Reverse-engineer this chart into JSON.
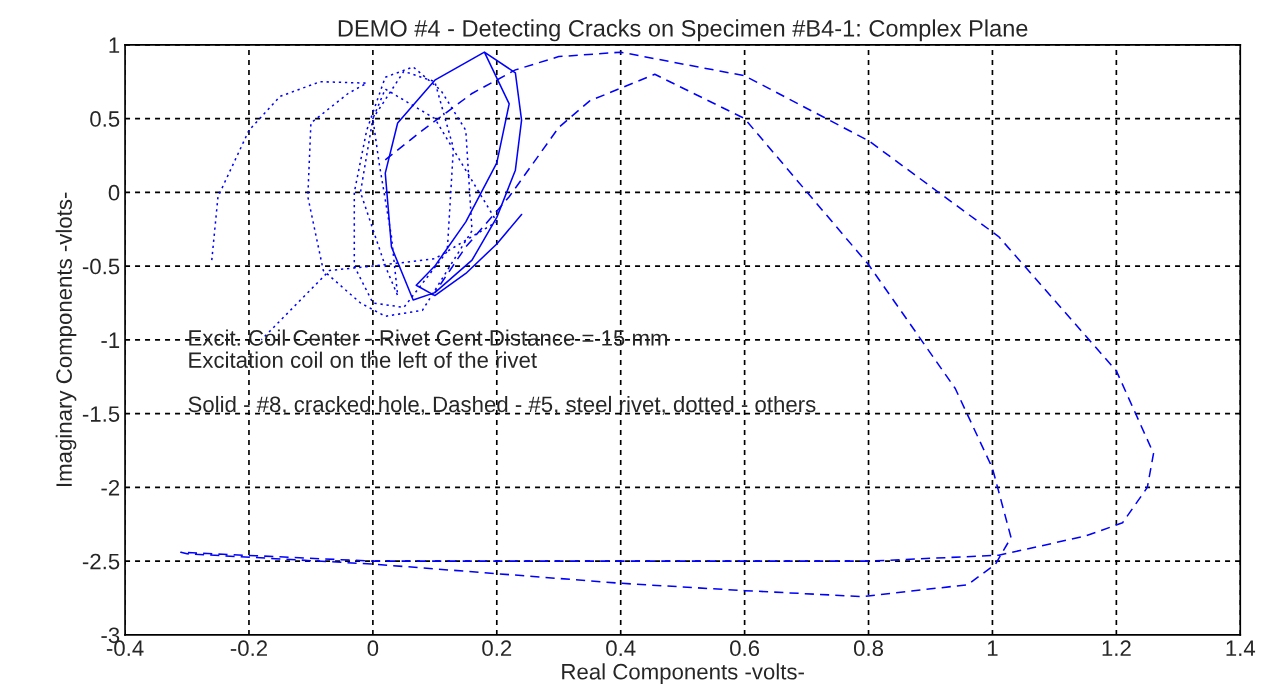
{
  "chart_data": {
    "type": "line",
    "title": "DEMO #4 - Detecting Cracks on Specimen #B4-1: Complex Plane",
    "xlabel": "Real Components -volts-",
    "ylabel": "Imaginary Components -vlots-",
    "xlim": [
      -0.4,
      1.4
    ],
    "ylim": [
      -3,
      1
    ],
    "xticks": [
      -0.4,
      -0.2,
      0,
      0.2,
      0.4,
      0.6,
      0.8,
      1,
      1.2,
      1.4
    ],
    "yticks": [
      -3,
      -2.5,
      -2,
      -1.5,
      -1,
      -0.5,
      0,
      0.5,
      1
    ],
    "grid": true,
    "legend": false,
    "annotations": [
      "Excit. Coil Center - Rivet Cent Distance = 15 mm",
      "Excitation coil on the left of the rivet",
      "Solid - #8, cracked hole, Dashed - #5, steel rivet, dotted - others"
    ],
    "series": [
      {
        "line_style": "solid",
        "color": "#0000ff",
        "x": [
          0.18,
          0.23,
          0.24,
          0.23,
          0.2,
          0.16,
          0.1,
          0.065,
          0.03,
          0.02,
          0.04,
          0.1,
          0.18,
          0.22,
          0.2,
          0.15,
          0.1,
          0.07,
          0.1,
          0.15,
          0.2,
          0.24
        ],
        "values": [
          0.95,
          0.81,
          0.49,
          0.15,
          -0.17,
          -0.46,
          -0.68,
          -0.73,
          -0.37,
          0.13,
          0.47,
          0.76,
          0.95,
          0.6,
          0.2,
          -0.2,
          -0.5,
          -0.63,
          -0.7,
          -0.55,
          -0.35,
          -0.15
        ]
      },
      {
        "line_style": "dashed",
        "color": "#0000ff",
        "x": [
          0.02,
          0.08,
          0.16,
          0.23,
          0.3,
          0.4,
          0.6,
          0.8,
          1.01,
          1.2,
          1.26,
          1.25,
          1.21,
          1.15,
          1.01,
          0.8,
          0.4,
          0.0,
          -0.31,
          -0.3,
          0.0,
          0.4,
          0.6,
          0.79,
          0.96,
          1.005,
          1.03,
          1.0,
          0.94,
          0.8,
          0.6,
          0.455,
          0.35,
          0.3,
          0.22,
          0.15,
          0.1
        ],
        "values": [
          0.22,
          0.42,
          0.67,
          0.83,
          0.92,
          0.95,
          0.79,
          0.35,
          -0.3,
          -1.21,
          -1.77,
          -2.0,
          -2.24,
          -2.33,
          -2.46,
          -2.5,
          -2.5,
          -2.5,
          -2.44,
          -2.45,
          -2.52,
          -2.65,
          -2.7,
          -2.74,
          -2.66,
          -2.52,
          -2.34,
          -1.87,
          -1.33,
          -0.49,
          0.5,
          0.8,
          0.62,
          0.44,
          -0.03,
          -0.37,
          -0.68
        ]
      },
      {
        "line_style": "dotted",
        "color": "#0000ff",
        "x": [
          -0.26,
          -0.25,
          -0.2,
          -0.15,
          -0.085,
          -0.01,
          -0.04,
          -0.1,
          -0.105,
          -0.08,
          -0.02,
          0.02,
          0.08,
          0.16,
          0.15,
          0.11,
          0.065,
          0.02,
          -0.01,
          -0.03,
          -0.03,
          0.0,
          0.05,
          0.12,
          0.13,
          0.1,
          0.05,
          0.0,
          -0.02,
          0.02,
          0.04,
          0.03,
          0.01,
          0.0,
          0.02,
          0.1,
          0.2,
          0.1,
          0.0,
          -0.07,
          -0.18
        ],
        "values": [
          -0.46,
          -0.03,
          0.42,
          0.65,
          0.75,
          0.74,
          0.67,
          0.47,
          -0.03,
          -0.53,
          -0.75,
          -0.84,
          -0.8,
          -0.26,
          0.42,
          0.69,
          0.85,
          0.78,
          0.42,
          0.0,
          -0.5,
          -0.75,
          -0.78,
          -0.4,
          0.3,
          0.75,
          0.82,
          0.5,
          0.0,
          -0.5,
          -0.7,
          -0.3,
          0.2,
          0.5,
          0.7,
          0.5,
          -0.2,
          -0.45,
          -0.5,
          -0.53,
          -1.0
        ]
      }
    ]
  }
}
